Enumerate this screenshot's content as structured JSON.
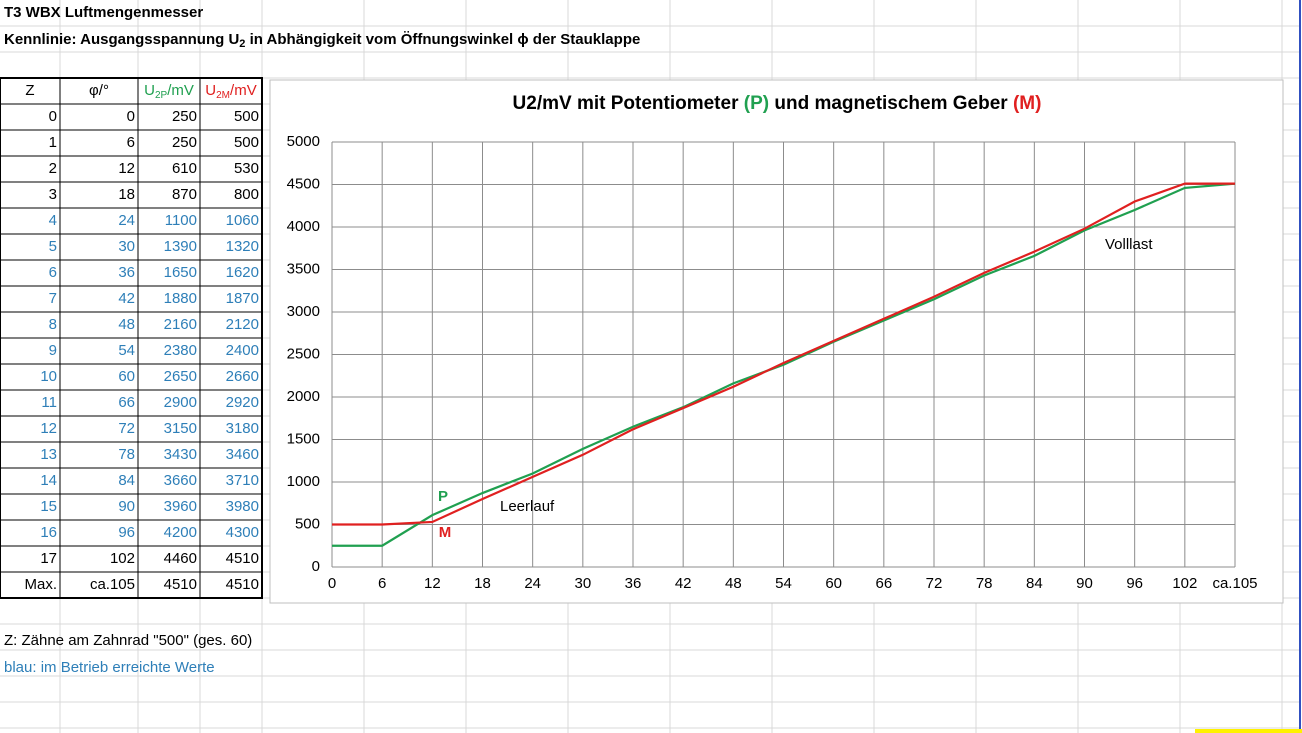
{
  "header": {
    "title": "T3 WBX Luftmengenmesser",
    "subtitle": [
      "Kennlinie: Ausgangsspannung U",
      "2",
      " in Abhängigkeit vom Öffnungswinkel ϕ der Stauklappe"
    ]
  },
  "table": {
    "header": [
      "Z",
      "φ/°",
      [
        "U",
        "2P",
        "/mV"
      ],
      [
        "U",
        "2M",
        "/mV"
      ]
    ],
    "header_colors": [
      "#000000",
      "#000000",
      "#20a050",
      "#e02020"
    ],
    "rows": [
      [
        0,
        0,
        250,
        500
      ],
      [
        1,
        6,
        250,
        500
      ],
      [
        2,
        12,
        610,
        530
      ],
      [
        3,
        18,
        870,
        800
      ],
      [
        4,
        24,
        1100,
        1060
      ],
      [
        5,
        30,
        1390,
        1320
      ],
      [
        6,
        36,
        1650,
        1620
      ],
      [
        7,
        42,
        1880,
        1870
      ],
      [
        8,
        48,
        2160,
        2120
      ],
      [
        9,
        54,
        2380,
        2400
      ],
      [
        10,
        60,
        2650,
        2660
      ],
      [
        11,
        66,
        2900,
        2920
      ],
      [
        12,
        72,
        3150,
        3180
      ],
      [
        13,
        78,
        3430,
        3460
      ],
      [
        14,
        84,
        3660,
        3710
      ],
      [
        15,
        90,
        3960,
        3980
      ],
      [
        16,
        96,
        4200,
        4300
      ],
      [
        17,
        102,
        4460,
        4510
      ],
      [
        "Max.",
        "ca.105",
        4510,
        4510
      ]
    ],
    "row_colors": [
      "#000000",
      "#000000",
      "#000000",
      "#000000",
      "#2e7fb8",
      "#2e7fb8",
      "#2e7fb8",
      "#2e7fb8",
      "#2e7fb8",
      "#2e7fb8",
      "#2e7fb8",
      "#2e7fb8",
      "#2e7fb8",
      "#2e7fb8",
      "#2e7fb8",
      "#2e7fb8",
      "#2e7fb8",
      "#000000",
      "#000000"
    ]
  },
  "notes": [
    {
      "text": "Z: Zähne am Zahnrad \"500\" (ges. 60)",
      "color": "#000000"
    },
    {
      "text": "blau: im Betrieb erreichte Werte",
      "color": "#2e7fb8"
    }
  ],
  "chart_data": {
    "type": "line",
    "title": [
      "U2/mV mit Potentiometer ",
      "(P)",
      " und magnetischem Geber ",
      "(M)"
    ],
    "title_colors": [
      "#000000",
      "#20a050",
      "#000000",
      "#e02020"
    ],
    "categories": [
      0,
      6,
      12,
      18,
      24,
      30,
      36,
      42,
      48,
      54,
      60,
      66,
      72,
      78,
      84,
      90,
      96,
      102,
      "ca.105"
    ],
    "series": [
      {
        "name": "P",
        "color": "#20a050",
        "values": [
          250,
          250,
          610,
          870,
          1100,
          1390,
          1650,
          1880,
          2160,
          2380,
          2650,
          2900,
          3150,
          3430,
          3660,
          3960,
          4200,
          4460,
          4510
        ]
      },
      {
        "name": "M",
        "color": "#e02020",
        "values": [
          500,
          500,
          530,
          800,
          1060,
          1320,
          1620,
          1870,
          2120,
          2400,
          2660,
          2920,
          3180,
          3460,
          3710,
          3980,
          4300,
          4510,
          4510
        ]
      }
    ],
    "annotations": [
      "Leerlauf",
      "Volllast"
    ],
    "ylim": [
      0,
      5000
    ],
    "yticks": [
      0,
      500,
      1000,
      1500,
      2000,
      2500,
      3000,
      3500,
      4000,
      4500,
      5000
    ],
    "grid": true
  }
}
